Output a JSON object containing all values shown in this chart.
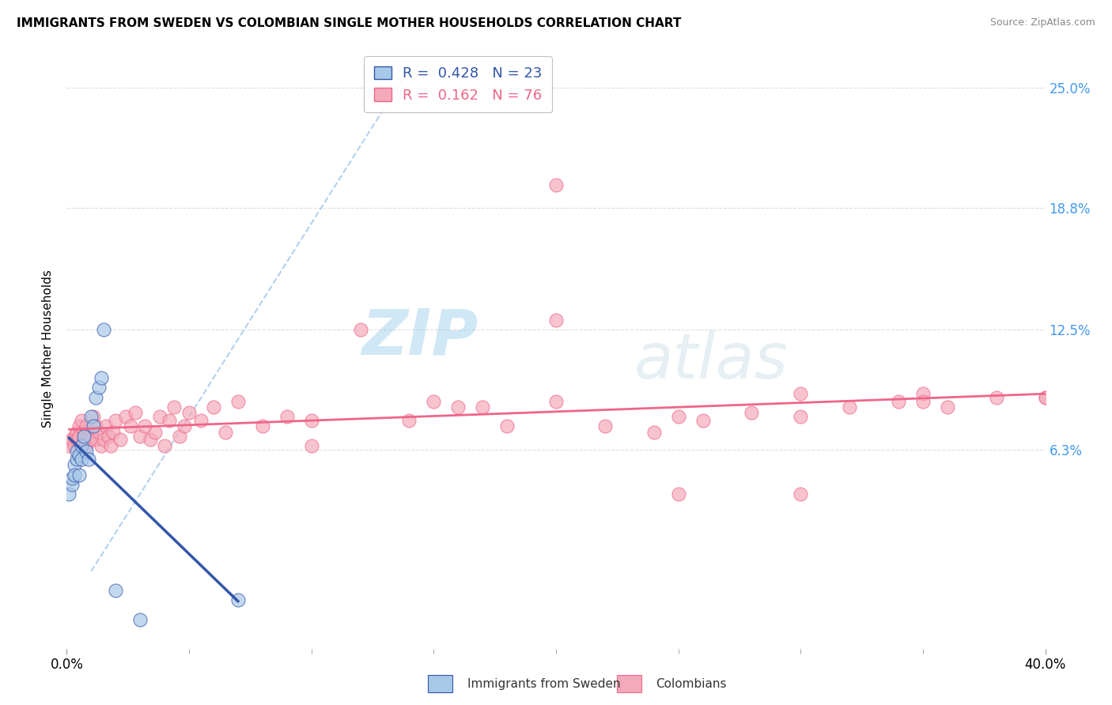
{
  "title": "IMMIGRANTS FROM SWEDEN VS COLOMBIAN SINGLE MOTHER HOUSEHOLDS CORRELATION CHART",
  "source": "Source: ZipAtlas.com",
  "xlabel_blue": "Immigrants from Sweden",
  "xlabel_pink": "Colombians",
  "ylabel": "Single Mother Households",
  "r_blue": 0.428,
  "n_blue": 23,
  "r_pink": 0.162,
  "n_pink": 76,
  "blue_color": "#A8C8E8",
  "pink_color": "#F4AABB",
  "blue_line_color": "#3355AA",
  "pink_line_color": "#EE6688",
  "xlim": [
    0.0,
    0.4
  ],
  "ylim": [
    -0.04,
    0.27
  ],
  "yticks": [
    0.063,
    0.125,
    0.188,
    0.25
  ],
  "ytick_labels": [
    "6.3%",
    "12.5%",
    "18.8%",
    "25.0%"
  ],
  "blue_points_x": [
    0.001,
    0.002,
    0.002,
    0.003,
    0.003,
    0.004,
    0.004,
    0.005,
    0.005,
    0.006,
    0.006,
    0.007,
    0.008,
    0.009,
    0.01,
    0.011,
    0.012,
    0.013,
    0.014,
    0.015,
    0.02,
    0.03,
    0.07
  ],
  "blue_points_y": [
    0.04,
    0.045,
    0.048,
    0.055,
    0.05,
    0.058,
    0.062,
    0.06,
    0.05,
    0.065,
    0.058,
    0.07,
    0.062,
    0.058,
    0.08,
    0.075,
    0.09,
    0.095,
    0.1,
    0.125,
    -0.01,
    -0.025,
    -0.015
  ],
  "pink_points_x": [
    0.001,
    0.002,
    0.003,
    0.003,
    0.004,
    0.004,
    0.005,
    0.005,
    0.006,
    0.007,
    0.007,
    0.008,
    0.008,
    0.009,
    0.01,
    0.01,
    0.011,
    0.012,
    0.012,
    0.013,
    0.014,
    0.015,
    0.016,
    0.017,
    0.018,
    0.019,
    0.02,
    0.022,
    0.024,
    0.026,
    0.028,
    0.03,
    0.032,
    0.034,
    0.036,
    0.038,
    0.04,
    0.042,
    0.044,
    0.046,
    0.048,
    0.05,
    0.055,
    0.06,
    0.065,
    0.07,
    0.08,
    0.09,
    0.1,
    0.12,
    0.14,
    0.16,
    0.18,
    0.2,
    0.22,
    0.24,
    0.26,
    0.28,
    0.3,
    0.32,
    0.34,
    0.36,
    0.38,
    0.4,
    0.1,
    0.15,
    0.2,
    0.25,
    0.3,
    0.35,
    0.2,
    0.25,
    0.17,
    0.3,
    0.4,
    0.35
  ],
  "pink_points_y": [
    0.065,
    0.068,
    0.065,
    0.07,
    0.072,
    0.068,
    0.075,
    0.07,
    0.078,
    0.068,
    0.072,
    0.065,
    0.075,
    0.07,
    0.072,
    0.068,
    0.08,
    0.075,
    0.068,
    0.072,
    0.065,
    0.068,
    0.075,
    0.07,
    0.065,
    0.072,
    0.078,
    0.068,
    0.08,
    0.075,
    0.082,
    0.07,
    0.075,
    0.068,
    0.072,
    0.08,
    0.065,
    0.078,
    0.085,
    0.07,
    0.075,
    0.082,
    0.078,
    0.085,
    0.072,
    0.088,
    0.075,
    0.08,
    0.078,
    0.125,
    0.078,
    0.085,
    0.075,
    0.13,
    0.075,
    0.072,
    0.078,
    0.082,
    0.08,
    0.085,
    0.088,
    0.085,
    0.09,
    0.09,
    0.065,
    0.088,
    0.2,
    0.04,
    0.04,
    0.092,
    0.088,
    0.08,
    0.085,
    0.092,
    0.09,
    0.088
  ],
  "ref_line_color": "#AACCEE",
  "ref_line_style": "--",
  "watermark_zip": "ZIP",
  "watermark_atlas": "atlas",
  "grid_color": "#DDDDDD"
}
